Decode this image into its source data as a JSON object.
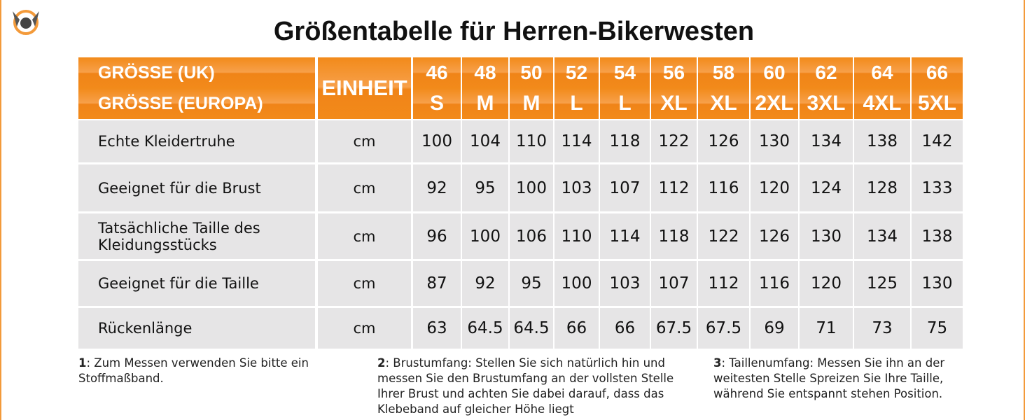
{
  "title": "Größentabelle für Herren-Bikerwesten",
  "table": {
    "header": {
      "size_uk_label": "GRÖSSE (UK)",
      "size_eu_label": "GRÖSSE (EUROPA)",
      "unit_label": "EINHEIT",
      "uk": [
        46,
        48,
        50,
        52,
        54,
        56,
        58,
        60,
        62,
        64,
        66
      ],
      "eu": [
        "S",
        "M",
        "M",
        "L",
        "L",
        "XL",
        "XL",
        "2XL",
        "3XL",
        "4XL",
        "5XL"
      ]
    },
    "rows": [
      {
        "label": "Echte Kleidertruhe",
        "unit": "cm",
        "values": [
          100,
          104,
          110,
          114,
          118,
          122,
          126,
          130,
          134,
          138,
          142
        ]
      },
      {
        "label": "Geeignet für die Brust",
        "unit": "cm",
        "values": [
          92,
          95,
          100,
          103,
          107,
          112,
          116,
          120,
          124,
          128,
          133
        ]
      },
      {
        "label": "Tatsächliche Taille des Kleidungsstücks",
        "unit": "cm",
        "values": [
          96,
          100,
          106,
          110,
          114,
          118,
          122,
          126,
          130,
          134,
          138
        ]
      },
      {
        "label": "Geeignet für die Taille",
        "unit": "cm",
        "values": [
          87,
          92,
          95,
          100,
          103,
          107,
          112,
          116,
          120,
          125,
          130
        ]
      },
      {
        "label": "Rückenlänge",
        "unit": "cm",
        "values": [
          63,
          64.5,
          64.5,
          66,
          66,
          67.5,
          67.5,
          69,
          71,
          73,
          75
        ]
      }
    ]
  },
  "footnotes": [
    {
      "number": "1",
      "text": ": Zum Messen verwenden Sie bitte ein Stoffmaßband."
    },
    {
      "number": "2",
      "text": ": Brustumfang: Stellen Sie sich natürlich hin und messen Sie den Brustumfang an der vollsten Stelle Ihrer Brust und achten Sie dabei darauf, dass das Klebeband auf gleicher Höhe liegt"
    },
    {
      "number": "3",
      "text": ": Taillenumfang: Messen Sie ihn an der weitesten Stelle Spreizen Sie Ihre Taille, während Sie entspannt stehen Position."
    }
  ]
}
